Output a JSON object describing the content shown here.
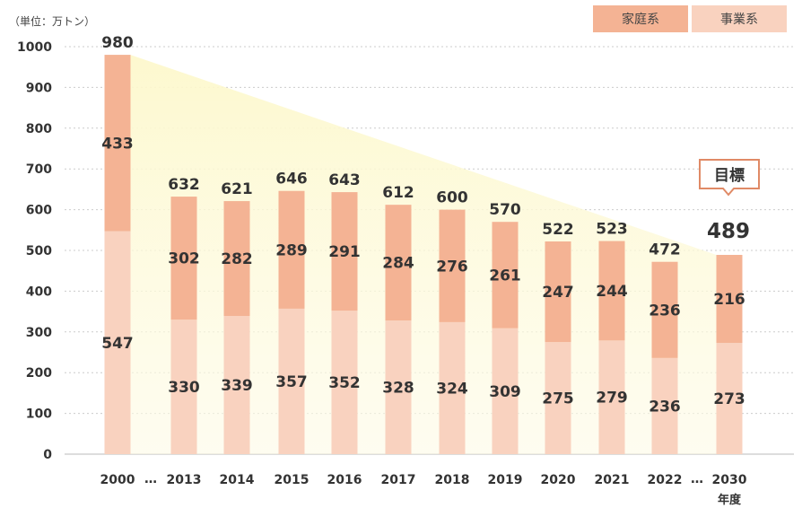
{
  "chart_data": {
    "type": "bar",
    "stacked": true,
    "unit_label": "（単位：万トン）",
    "xlabel": "年度",
    "ylim": [
      0,
      1000
    ],
    "yticks": [
      0,
      100,
      200,
      300,
      400,
      500,
      600,
      700,
      800,
      900,
      1000
    ],
    "categories": [
      "2000",
      "2013",
      "2014",
      "2015",
      "2016",
      "2017",
      "2018",
      "2019",
      "2020",
      "2021",
      "2022",
      "2030"
    ],
    "gaps": [
      "…",
      "…"
    ],
    "series": [
      {
        "name": "事業系",
        "color": "#f9d2bf",
        "values": [
          547,
          330,
          339,
          357,
          352,
          328,
          324,
          309,
          275,
          279,
          236,
          273
        ]
      },
      {
        "name": "家庭系",
        "color": "#f4b394",
        "values": [
          433,
          302,
          282,
          289,
          291,
          284,
          276,
          261,
          247,
          244,
          236,
          216
        ]
      }
    ],
    "totals": [
      980,
      632,
      621,
      646,
      643,
      612,
      600,
      570,
      522,
      523,
      472,
      489
    ],
    "legend": [
      "家庭系",
      "事業系"
    ],
    "target_label": "目標",
    "target_value": 489
  }
}
